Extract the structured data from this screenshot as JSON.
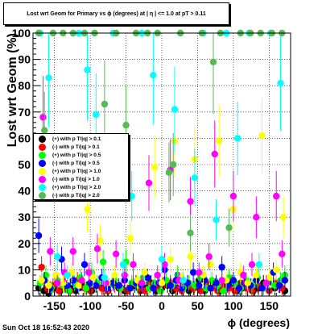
{
  "title": "Lost wrt Geom for Primary vs ϕ (degrees) at | η | <= 1.0 at pT > 0.11",
  "footer": "Sun Oct 18 16:52:43 2020",
  "chart_data": {
    "type": "scatter",
    "xlabel": "ϕ (degrees)",
    "ylabel": "Lost wrt Geom (%)",
    "xlim": [
      -180,
      180
    ],
    "ylim": [
      0,
      100
    ],
    "x_ticks": [
      -150,
      -100,
      -50,
      0,
      50,
      100,
      150
    ],
    "y_ticks": [
      0,
      10,
      20,
      30,
      40,
      50,
      60,
      70,
      80,
      90,
      100
    ],
    "grid": true,
    "legend_position": "left-middle",
    "series": [
      {
        "name": "(+) with p T/|q| > 0.1",
        "color": "#000000",
        "points": [
          [
            -172,
            3
          ],
          [
            -165,
            2
          ],
          [
            -158,
            1
          ],
          [
            -150,
            3
          ],
          [
            -142,
            2
          ],
          [
            -135,
            4
          ],
          [
            -128,
            3
          ],
          [
            -120,
            2
          ],
          [
            -112,
            5
          ],
          [
            -105,
            3
          ],
          [
            -98,
            2
          ],
          [
            -90,
            4
          ],
          [
            -82,
            3
          ],
          [
            -75,
            2
          ],
          [
            -68,
            5
          ],
          [
            -60,
            3
          ],
          [
            -52,
            2
          ],
          [
            -45,
            3
          ],
          [
            -38,
            4
          ],
          [
            -30,
            2
          ],
          [
            -22,
            3
          ],
          [
            -15,
            5
          ],
          [
            -8,
            2
          ],
          [
            0,
            3
          ],
          [
            8,
            4
          ],
          [
            15,
            2
          ],
          [
            22,
            3
          ],
          [
            30,
            5
          ],
          [
            38,
            2
          ],
          [
            45,
            3
          ],
          [
            52,
            6
          ],
          [
            60,
            2
          ],
          [
            68,
            3
          ],
          [
            75,
            4
          ],
          [
            82,
            2
          ],
          [
            90,
            3
          ],
          [
            98,
            5
          ],
          [
            105,
            2
          ],
          [
            112,
            3
          ],
          [
            120,
            4
          ],
          [
            128,
            2
          ],
          [
            135,
            3
          ],
          [
            142,
            5
          ],
          [
            150,
            2
          ],
          [
            158,
            3
          ],
          [
            165,
            4
          ],
          [
            172,
            2
          ]
        ]
      },
      {
        "name": "(-) with p T/|q| > 0.1",
        "color": "#ff0000",
        "points": [
          [
            -168,
            11
          ],
          [
            -160,
            3
          ],
          [
            -152,
            4
          ],
          [
            -144,
            2
          ],
          [
            -136,
            5
          ],
          [
            -128,
            2
          ],
          [
            -118,
            6
          ],
          [
            -108,
            3
          ],
          [
            -100,
            2
          ],
          [
            -92,
            4
          ],
          [
            -84,
            3
          ],
          [
            -76,
            2
          ],
          [
            -66,
            4
          ],
          [
            -56,
            3
          ],
          [
            -48,
            2
          ],
          [
            -40,
            5
          ],
          [
            -32,
            3
          ],
          [
            -24,
            2
          ],
          [
            -16,
            4
          ],
          [
            -6,
            3
          ],
          [
            4,
            6
          ],
          [
            12,
            5
          ],
          [
            20,
            3
          ],
          [
            28,
            2
          ],
          [
            36,
            4
          ],
          [
            44,
            3
          ],
          [
            54,
            2
          ],
          [
            62,
            5
          ],
          [
            70,
            3
          ],
          [
            78,
            2
          ],
          [
            86,
            4
          ],
          [
            94,
            3
          ],
          [
            102,
            2
          ],
          [
            110,
            5
          ],
          [
            118,
            3
          ],
          [
            126,
            2
          ],
          [
            134,
            4
          ],
          [
            142,
            3
          ],
          [
            150,
            2
          ],
          [
            160,
            5
          ],
          [
            168,
            3
          ]
        ]
      },
      {
        "name": "(+) with p T/|q| > 0.5",
        "color": "#00ff00",
        "points": [
          [
            -170,
            5
          ],
          [
            -162,
            8
          ],
          [
            -154,
            3
          ],
          [
            -146,
            6
          ],
          [
            -138,
            4
          ],
          [
            -130,
            2
          ],
          [
            -122,
            5
          ],
          [
            -114,
            7
          ],
          [
            -106,
            3
          ],
          [
            -98,
            9
          ],
          [
            -90,
            5
          ],
          [
            -82,
            13
          ],
          [
            -74,
            4
          ],
          [
            -66,
            6
          ],
          [
            -58,
            3
          ],
          [
            -50,
            13
          ],
          [
            -42,
            5
          ],
          [
            -34,
            4
          ],
          [
            -26,
            7
          ],
          [
            -18,
            3
          ],
          [
            -10,
            5
          ],
          [
            -2,
            2
          ],
          [
            6,
            6
          ],
          [
            14,
            4
          ],
          [
            22,
            8
          ],
          [
            30,
            3
          ],
          [
            38,
            5
          ],
          [
            46,
            4
          ],
          [
            54,
            7
          ],
          [
            62,
            3
          ],
          [
            70,
            6
          ],
          [
            78,
            4
          ],
          [
            86,
            2
          ],
          [
            94,
            7
          ],
          [
            102,
            5
          ],
          [
            110,
            3
          ],
          [
            118,
            6
          ],
          [
            126,
            4
          ],
          [
            134,
            7
          ],
          [
            142,
            3
          ],
          [
            150,
            5
          ],
          [
            158,
            4
          ],
          [
            166,
            6
          ],
          [
            172,
            8
          ]
        ]
      },
      {
        "name": "(-) with p T/|q| > 0.5",
        "color": "#0000ff",
        "points": [
          [
            -172,
            23
          ],
          [
            -164,
            6
          ],
          [
            -156,
            3
          ],
          [
            -148,
            8
          ],
          [
            -140,
            14
          ],
          [
            -132,
            4
          ],
          [
            -124,
            6
          ],
          [
            -116,
            3
          ],
          [
            -108,
            12
          ],
          [
            -100,
            5
          ],
          [
            -92,
            4
          ],
          [
            -84,
            7
          ],
          [
            -76,
            3
          ],
          [
            -68,
            5
          ],
          [
            -60,
            4
          ],
          [
            -52,
            6
          ],
          [
            -44,
            3
          ],
          [
            -36,
            5
          ],
          [
            -28,
            4
          ],
          [
            -20,
            7
          ],
          [
            -12,
            3
          ],
          [
            -4,
            5
          ],
          [
            4,
            10
          ],
          [
            12,
            4
          ],
          [
            20,
            6
          ],
          [
            28,
            3
          ],
          [
            36,
            5
          ],
          [
            44,
            9
          ],
          [
            52,
            4
          ],
          [
            60,
            6
          ],
          [
            68,
            3
          ],
          [
            76,
            5
          ],
          [
            84,
            11
          ],
          [
            92,
            4
          ],
          [
            100,
            6
          ],
          [
            108,
            3
          ],
          [
            116,
            5
          ],
          [
            124,
            4
          ],
          [
            132,
            6
          ],
          [
            140,
            3
          ],
          [
            148,
            5
          ],
          [
            156,
            9
          ],
          [
            164,
            4
          ],
          [
            172,
            6
          ]
        ]
      },
      {
        "name": "(+) with p T/|q| > 1.0",
        "color": "#ffff00",
        "points": [
          [
            -168,
            6
          ],
          [
            -158,
            4
          ],
          [
            -148,
            8
          ],
          [
            -138,
            5
          ],
          [
            -126,
            9
          ],
          [
            -116,
            4
          ],
          [
            -104,
            33
          ],
          [
            -96,
            7
          ],
          [
            -86,
            21
          ],
          [
            -76,
            5
          ],
          [
            -66,
            8
          ],
          [
            -54,
            12
          ],
          [
            -44,
            22
          ],
          [
            -34,
            6
          ],
          [
            -24,
            9
          ],
          [
            -10,
            49
          ],
          [
            0,
            5
          ],
          [
            12,
            14
          ],
          [
            18,
            59
          ],
          [
            28,
            7
          ],
          [
            40,
            15
          ],
          [
            46,
            52
          ],
          [
            58,
            8
          ],
          [
            68,
            12
          ],
          [
            80,
            59
          ],
          [
            90,
            6
          ],
          [
            100,
            33
          ],
          [
            110,
            9
          ],
          [
            120,
            5
          ],
          [
            132,
            8
          ],
          [
            140,
            61
          ],
          [
            150,
            7
          ],
          [
            160,
            10
          ],
          [
            170,
            30
          ]
        ]
      },
      {
        "name": "(-) with p T/|q| > 1.0",
        "color": "#ff00ff",
        "points": [
          [
            -166,
            68
          ],
          [
            -156,
            17
          ],
          [
            -146,
            5
          ],
          [
            -136,
            9
          ],
          [
            -124,
            17
          ],
          [
            -112,
            6
          ],
          [
            -102,
            9
          ],
          [
            -90,
            18
          ],
          [
            -78,
            5
          ],
          [
            -64,
            16
          ],
          [
            -52,
            8
          ],
          [
            -40,
            12
          ],
          [
            -28,
            5
          ],
          [
            -18,
            43
          ],
          [
            -6,
            8
          ],
          [
            4,
            12
          ],
          [
            12,
            48
          ],
          [
            24,
            6
          ],
          [
            40,
            36
          ],
          [
            52,
            9
          ],
          [
            66,
            15
          ],
          [
            74,
            54
          ],
          [
            84,
            6
          ],
          [
            100,
            38
          ],
          [
            114,
            8
          ],
          [
            126,
            12
          ],
          [
            132,
            30
          ],
          [
            146,
            5
          ],
          [
            160,
            38
          ],
          [
            168,
            16
          ]
        ]
      },
      {
        "name": "(+) with p T/|q| > 2.0",
        "color": "#00ffff",
        "points": [
          [
            -170,
            100
          ],
          [
            -158,
            83
          ],
          [
            -146,
            15
          ],
          [
            -132,
            8
          ],
          [
            -116,
            100
          ],
          [
            -104,
            86
          ],
          [
            -92,
            69
          ],
          [
            -80,
            7
          ],
          [
            -68,
            100
          ],
          [
            -54,
            12
          ],
          [
            -42,
            38
          ],
          [
            -28,
            100
          ],
          [
            -12,
            84
          ],
          [
            0,
            14
          ],
          [
            18,
            71
          ],
          [
            30,
            6
          ],
          [
            46,
            45
          ],
          [
            58,
            100
          ],
          [
            76,
            29
          ],
          [
            90,
            100
          ],
          [
            106,
            60
          ],
          [
            122,
            100
          ],
          [
            136,
            12
          ],
          [
            152,
            100
          ],
          [
            166,
            81
          ]
        ]
      },
      {
        "name": "(-) with p T/|q| > 2.0",
        "color": "#55bb55",
        "points": [
          [
            -172,
            100
          ],
          [
            -164,
            63
          ],
          [
            -152,
            100
          ],
          [
            -138,
            100
          ],
          [
            -124,
            100
          ],
          [
            -108,
            100
          ],
          [
            -94,
            100
          ],
          [
            -80,
            73
          ],
          [
            -64,
            100
          ],
          [
            -50,
            65
          ],
          [
            -36,
            100
          ],
          [
            -20,
            100
          ],
          [
            -6,
            100
          ],
          [
            10,
            47
          ],
          [
            16,
            50
          ],
          [
            26,
            100
          ],
          [
            40,
            24
          ],
          [
            56,
            100
          ],
          [
            72,
            89
          ],
          [
            82,
            100
          ],
          [
            94,
            26
          ],
          [
            110,
            100
          ],
          [
            124,
            100
          ],
          [
            138,
            100
          ],
          [
            154,
            100
          ],
          [
            168,
            100
          ]
        ]
      }
    ]
  }
}
